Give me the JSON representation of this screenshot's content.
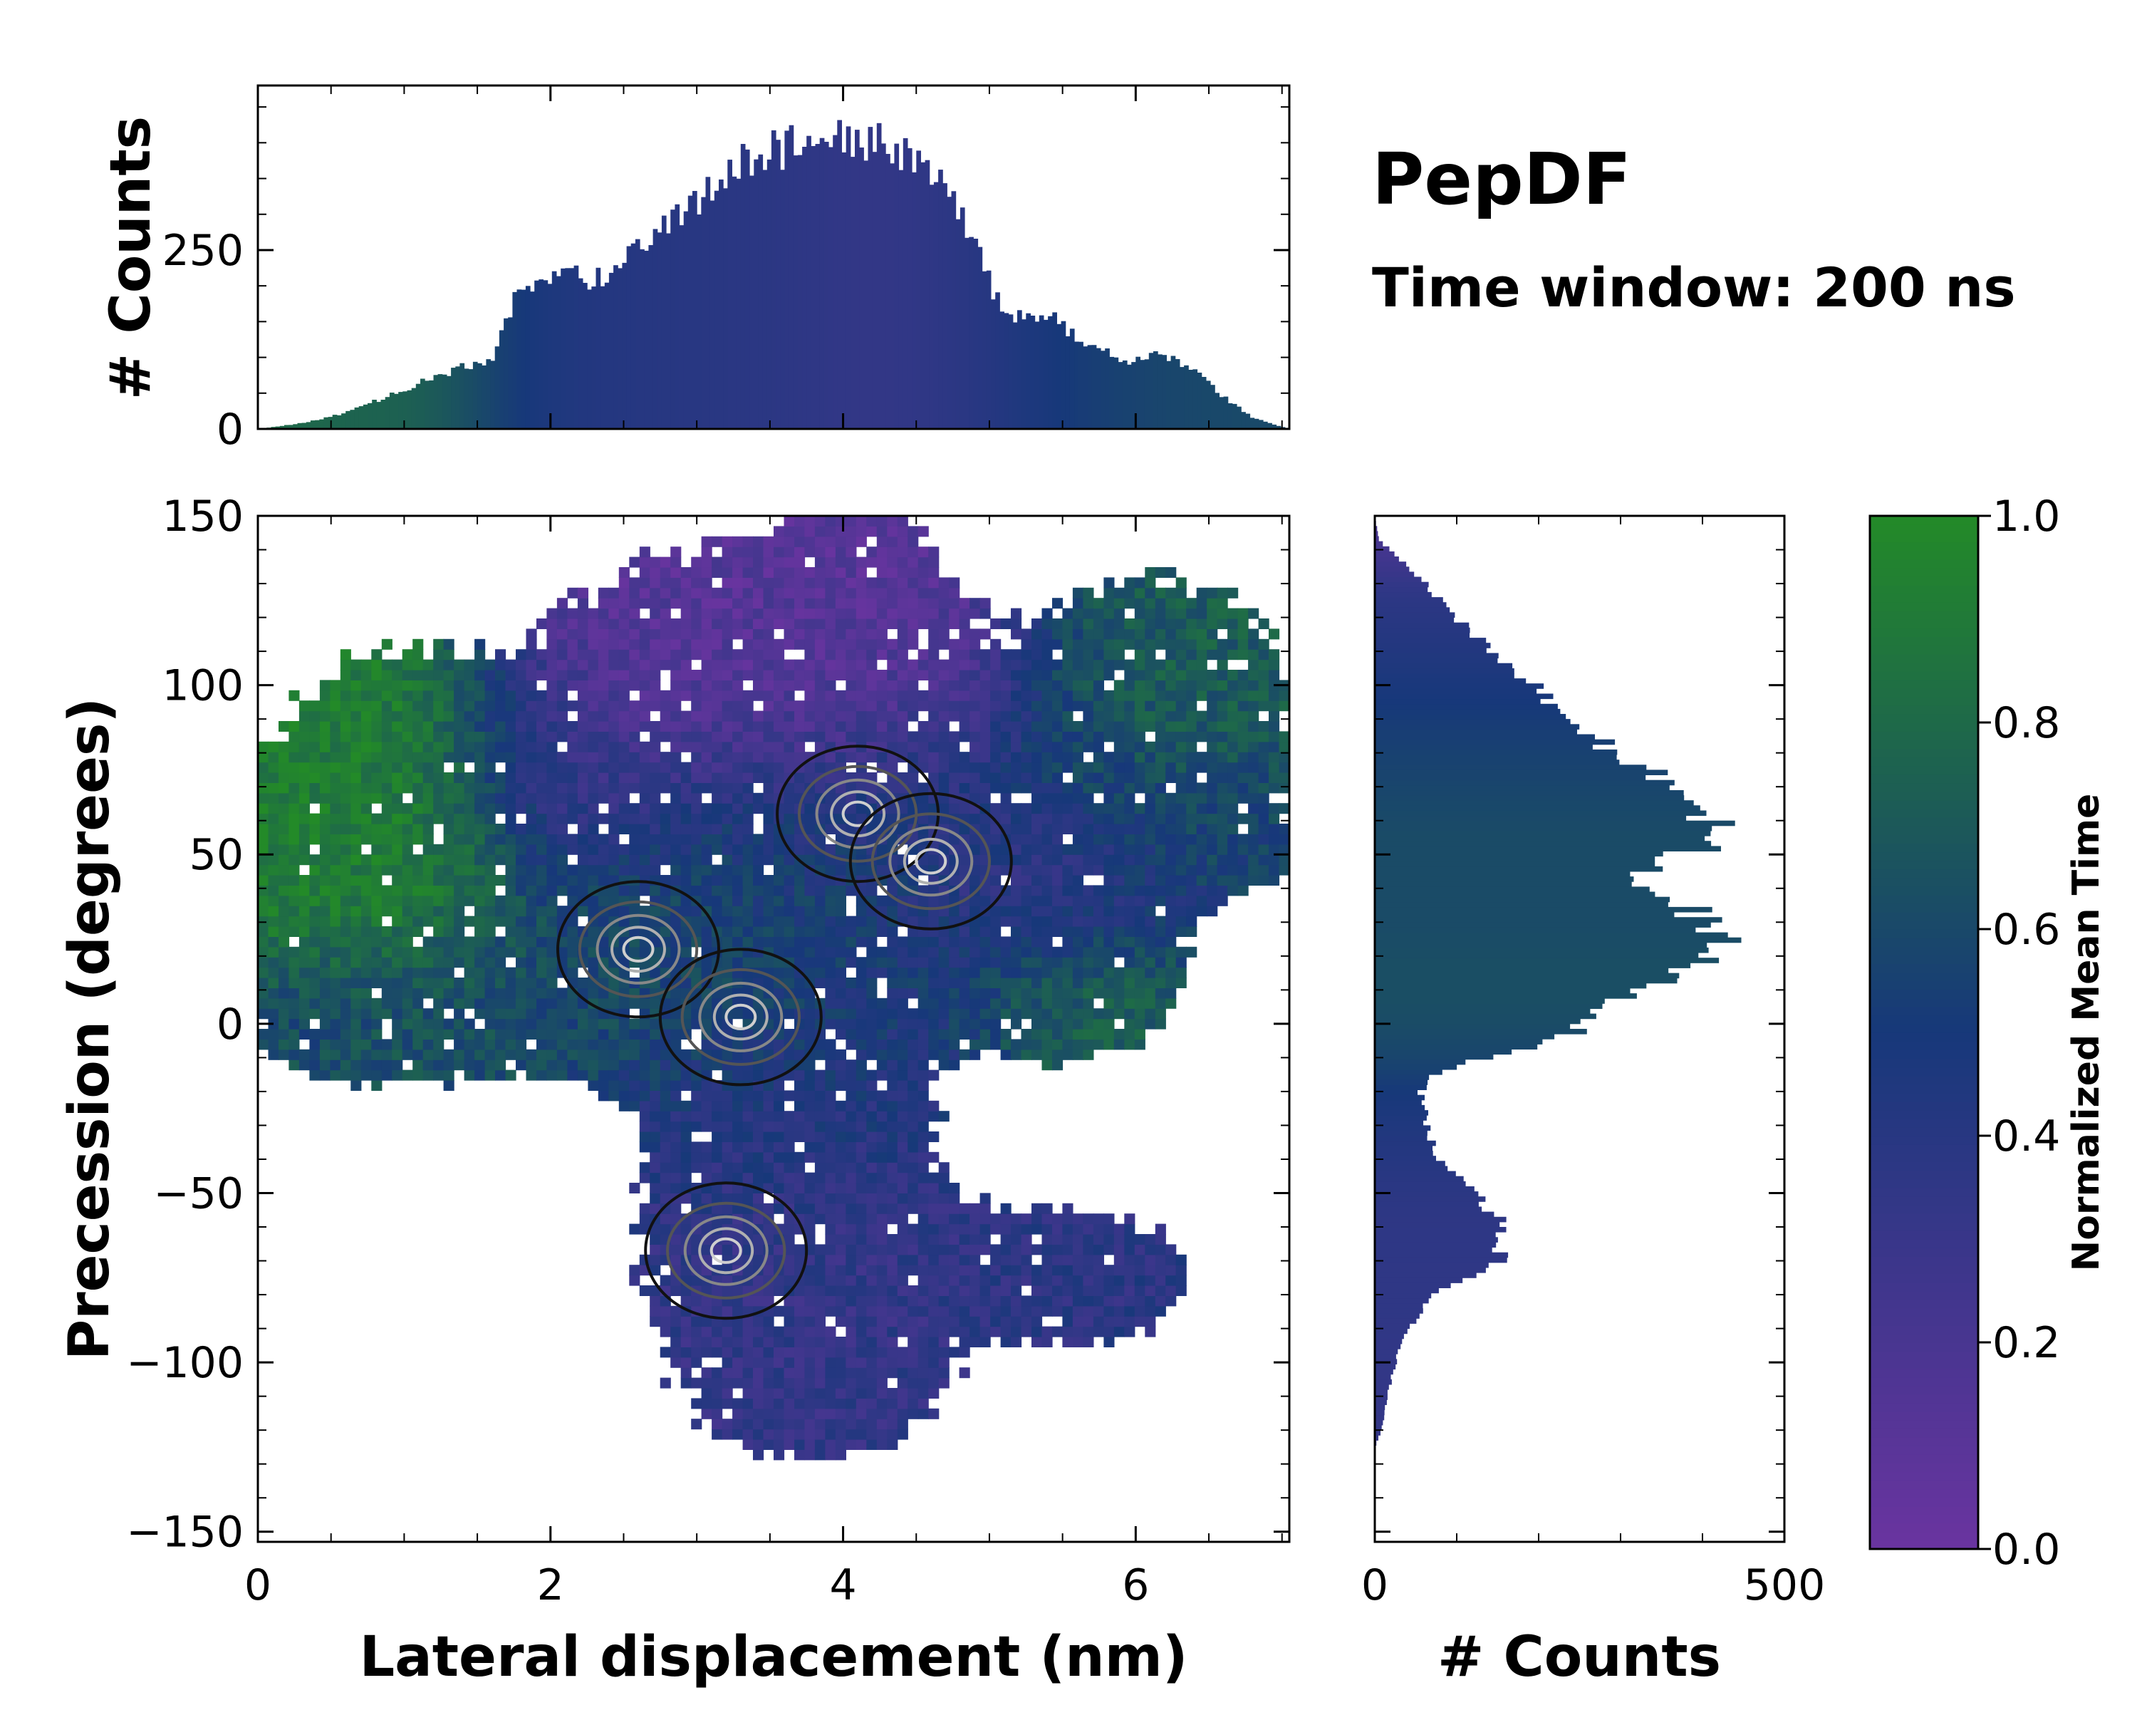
{
  "title": "PepDF",
  "subtitle": "Time window: 200 ns",
  "colors": {
    "scale_low": "#6a34a0",
    "scale_mid": "#17387a",
    "scale_high": "#238a28",
    "contour_dark": "#111111",
    "contour_light": "#cfcfcf"
  },
  "chart_data": [
    {
      "id": "joint",
      "type": "heatmap",
      "xlabel": "Lateral displacement (nm)",
      "ylabel": "Precession (degrees)",
      "xlim": [
        0,
        7.05
      ],
      "ylim": [
        -153,
        150
      ],
      "xticks": [
        0,
        2,
        4,
        6
      ],
      "xtick_labels": [
        "0",
        "2",
        "4",
        "6"
      ],
      "yticks": [
        150,
        100,
        50,
        0,
        -50,
        -100,
        -150
      ],
      "ytick_labels": [
        "150",
        "100",
        "50",
        "0",
        "−50",
        "−100",
        "−150"
      ],
      "color_variable": "Normalized Mean Time",
      "regions": [
        {
          "name": "upper-left-green",
          "x": 0.9,
          "y": 60,
          "sx": 0.55,
          "sy": 32,
          "w": 1.0,
          "t": 0.93
        },
        {
          "name": "far-left-green",
          "x": 0.25,
          "y": 48,
          "sx": 0.3,
          "sy": 14,
          "w": 0.8,
          "t": 0.9
        },
        {
          "name": "top-purple",
          "x": 3.5,
          "y": 108,
          "sx": 0.9,
          "sy": 22,
          "w": 1.1,
          "t": 0.12
        },
        {
          "name": "top-peak",
          "x": 4.1,
          "y": 142,
          "sx": 0.3,
          "sy": 8,
          "w": 0.6,
          "t": 0.1
        },
        {
          "name": "upper-right-green",
          "x": 6.2,
          "y": 95,
          "sx": 0.55,
          "sy": 25,
          "w": 0.9,
          "t": 0.72
        },
        {
          "name": "right-arm",
          "x": 6.3,
          "y": 60,
          "sx": 0.6,
          "sy": 13,
          "w": 0.85,
          "t": 0.55
        },
        {
          "name": "center-blue",
          "x": 4.2,
          "y": 45,
          "sx": 1.1,
          "sy": 28,
          "w": 1.1,
          "t": 0.42
        },
        {
          "name": "center-green",
          "x": 3.3,
          "y": 30,
          "sx": 0.8,
          "sy": 20,
          "w": 0.9,
          "t": 0.65
        },
        {
          "name": "left-teal",
          "x": 1.7,
          "y": 8,
          "sx": 0.9,
          "sy": 15,
          "w": 1.0,
          "t": 0.6
        },
        {
          "name": "left-tip",
          "x": 0.5,
          "y": 0,
          "sx": 0.35,
          "sy": 10,
          "w": 0.6,
          "t": 0.58
        },
        {
          "name": "right-lower-green",
          "x": 5.6,
          "y": 10,
          "sx": 0.45,
          "sy": 14,
          "w": 0.7,
          "t": 0.8
        },
        {
          "name": "lower-blue",
          "x": 3.7,
          "y": -70,
          "sx": 0.7,
          "sy": 22,
          "w": 1.0,
          "t": 0.34
        },
        {
          "name": "bottom-blue",
          "x": 3.8,
          "y": -108,
          "sx": 0.55,
          "sy": 14,
          "w": 0.8,
          "t": 0.33
        },
        {
          "name": "lower-right-blue",
          "x": 5.6,
          "y": -75,
          "sx": 0.55,
          "sy": 14,
          "w": 0.75,
          "t": 0.38
        },
        {
          "name": "neck",
          "x": 3.6,
          "y": -25,
          "sx": 0.6,
          "sy": 18,
          "w": 0.9,
          "t": 0.45
        },
        {
          "name": "side-right",
          "x": 5.3,
          "y": 40,
          "sx": 0.5,
          "sy": 14,
          "w": 0.7,
          "t": 0.3
        },
        {
          "name": "mid-purple",
          "x": 2.1,
          "y": 72,
          "sx": 0.5,
          "sy": 18,
          "w": 0.7,
          "t": 0.28
        }
      ],
      "density_peaks": [
        {
          "x": 2.6,
          "y": 22
        },
        {
          "x": 4.1,
          "y": 62
        },
        {
          "x": 4.6,
          "y": 48
        },
        {
          "x": 3.2,
          "y": -67
        },
        {
          "x": 3.3,
          "y": 2
        }
      ]
    },
    {
      "id": "top-hist",
      "type": "bar",
      "orientation": "vertical",
      "ylabel": "# Counts",
      "yticks": [
        0,
        250
      ],
      "ylim": [
        0,
        480
      ],
      "x_range": [
        0,
        7.05
      ],
      "bin_width": 0.03,
      "profile_x": [
        0,
        0.3,
        0.6,
        1.0,
        1.3,
        1.6,
        1.75,
        1.9,
        2.05,
        2.3,
        2.6,
        2.9,
        3.2,
        3.5,
        3.8,
        4.1,
        4.4,
        4.7,
        4.9,
        5.1,
        5.3,
        5.45,
        5.7,
        6.0,
        6.2,
        6.4,
        6.6,
        6.8,
        7.05
      ],
      "profile_y": [
        0,
        8,
        22,
        55,
        80,
        100,
        180,
        200,
        225,
        205,
        250,
        300,
        360,
        390,
        400,
        410,
        390,
        330,
        270,
        150,
        160,
        155,
        110,
        95,
        105,
        80,
        45,
        15,
        0
      ]
    },
    {
      "id": "right-hist",
      "type": "bar",
      "orientation": "horizontal",
      "xlabel": "# Counts",
      "xticks": [
        0,
        500
      ],
      "xlim": [
        0,
        500
      ],
      "y_range": [
        -153,
        150
      ],
      "bin_width": 1.5,
      "profile_y": [
        150,
        143,
        135,
        120,
        105,
        95,
        85,
        75,
        62,
        57,
        50,
        42,
        35,
        25,
        15,
        5,
        0,
        -5,
        -10,
        -15,
        -20,
        -30,
        -40,
        -50,
        -60,
        -70,
        -80,
        -90,
        -100,
        -110,
        -120,
        -125,
        -150
      ],
      "profile_x": [
        0,
        5,
        40,
        100,
        160,
        220,
        260,
        330,
        390,
        430,
        380,
        300,
        380,
        420,
        380,
        280,
        260,
        220,
        130,
        70,
        55,
        65,
        75,
        120,
        160,
        150,
        75,
        40,
        25,
        15,
        8,
        0,
        0
      ]
    },
    {
      "id": "colorbar",
      "type": "colorbar",
      "label": "Normalized Mean Time",
      "ticks": [
        0.0,
        0.2,
        0.4,
        0.6,
        0.8,
        1.0
      ],
      "tick_labels": [
        "0.0",
        "0.2",
        "0.4",
        "0.6",
        "0.8",
        "1.0"
      ],
      "range": [
        0,
        1
      ]
    }
  ]
}
